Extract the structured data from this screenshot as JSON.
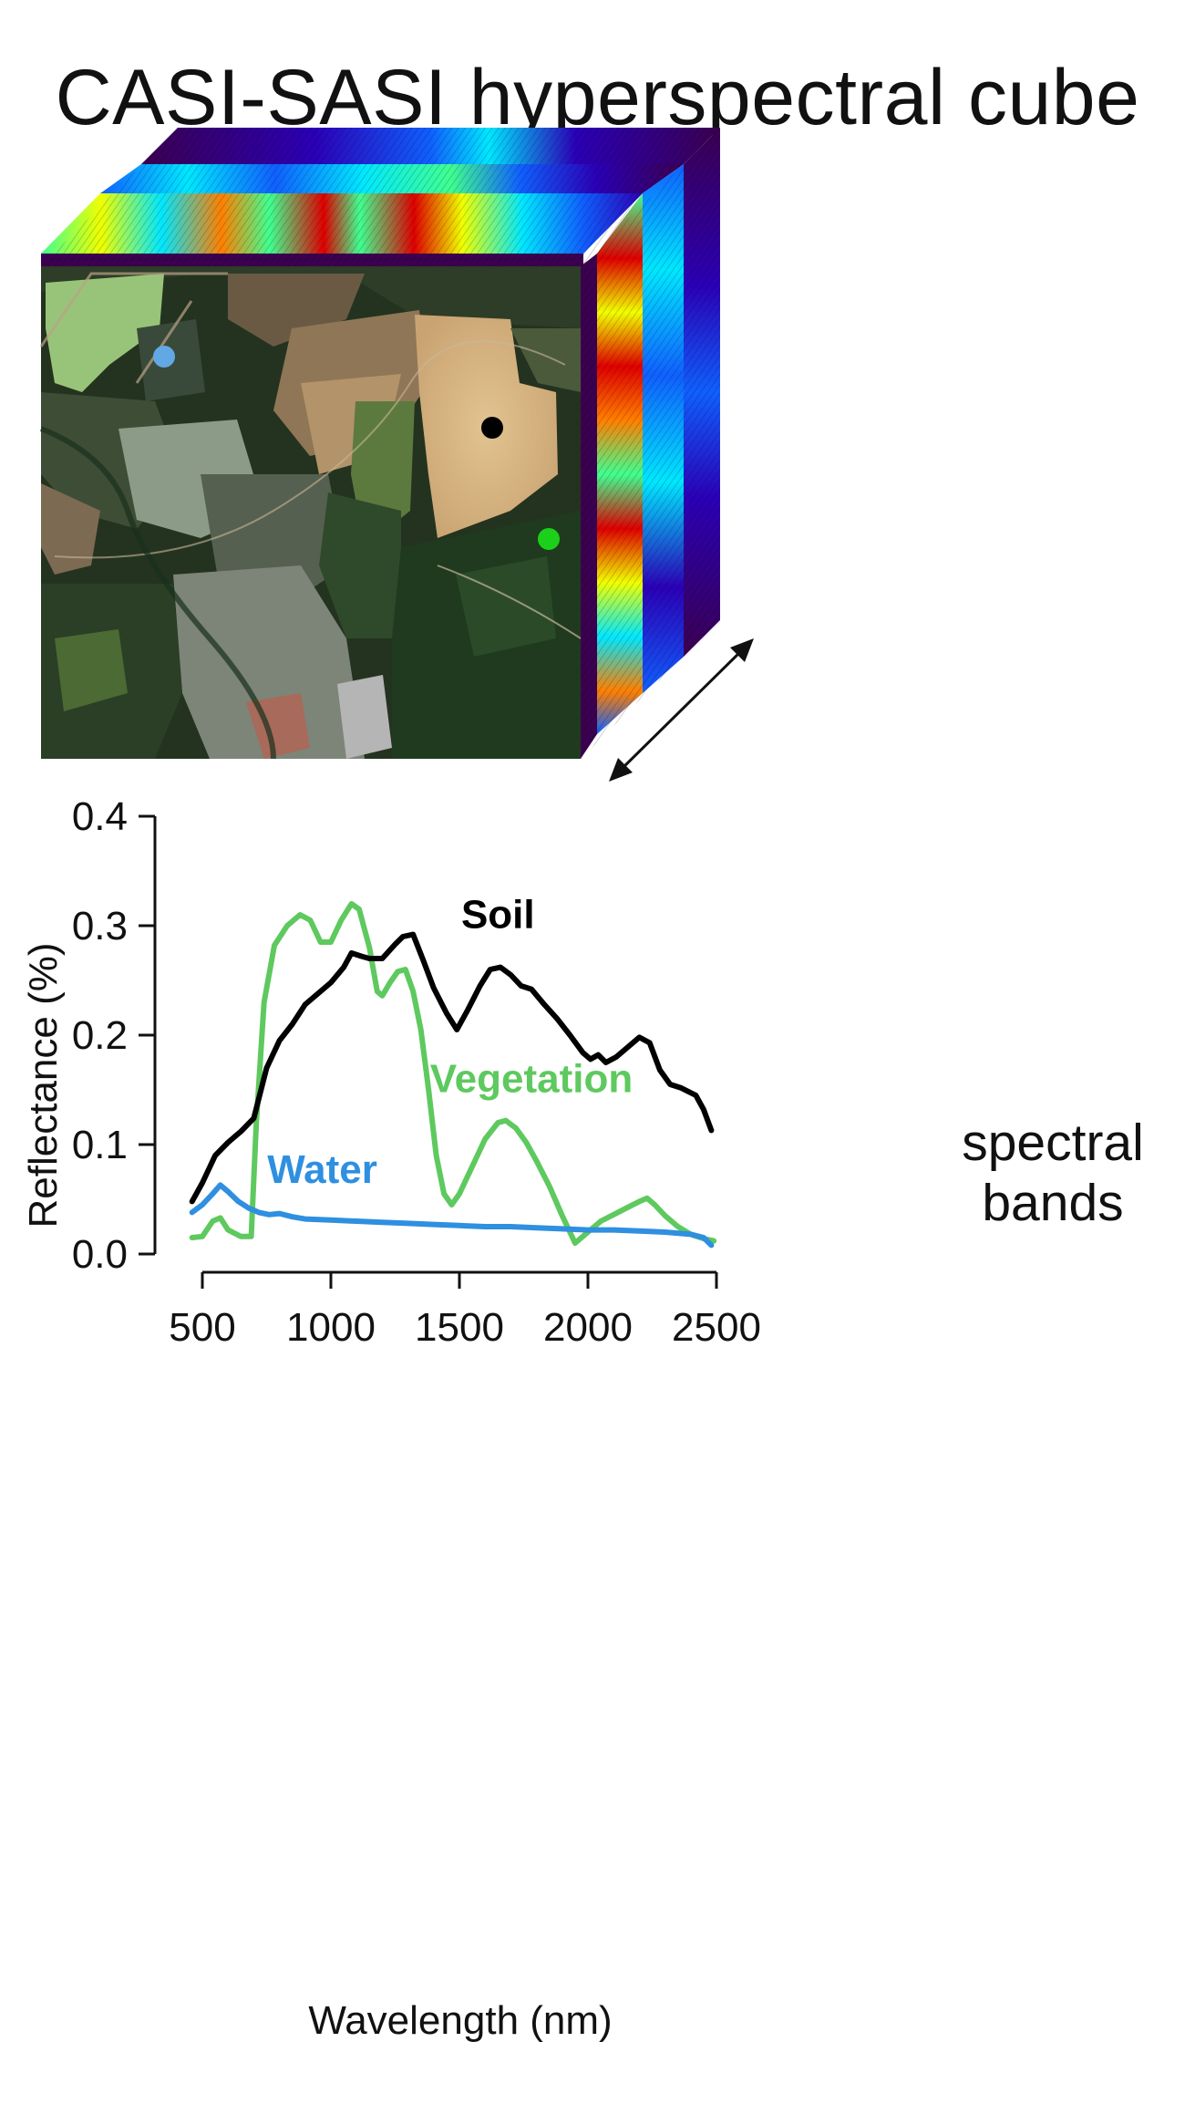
{
  "figure": {
    "title": "CASI-SASI hyperspectral cube",
    "bands_label_line1": "spectral",
    "bands_label_line2": "bands",
    "markers": [
      {
        "name": "water-marker",
        "color": "#62a8e4"
      },
      {
        "name": "soil-marker",
        "color": "#000000"
      },
      {
        "name": "vegetation-marker",
        "color": "#1bd01b"
      }
    ],
    "colormap": [
      "#3b0050",
      "#2b00b8",
      "#1060ff",
      "#00e8ff",
      "#40ff90",
      "#f0ff00",
      "#ff8000",
      "#e00000"
    ]
  },
  "chart_data": {
    "type": "line",
    "xlabel": "Wavelength (nm)",
    "ylabel": "Reflectance (%)",
    "xlim": [
      450,
      2500
    ],
    "ylim": [
      0,
      0.4
    ],
    "xticks": [
      500,
      1000,
      1500,
      2000,
      2500
    ],
    "yticks": [
      "0.0",
      "0.1",
      "0.2",
      "0.3",
      "0.4"
    ],
    "grid": false,
    "series": [
      {
        "name": "Soil",
        "color": "#000000",
        "x": [
          460,
          500,
          550,
          600,
          650,
          700,
          750,
          800,
          850,
          900,
          950,
          1000,
          1050,
          1080,
          1120,
          1150,
          1200,
          1250,
          1280,
          1320,
          1360,
          1400,
          1450,
          1490,
          1530,
          1580,
          1620,
          1660,
          1700,
          1740,
          1780,
          1830,
          1880,
          1930,
          1980,
          2010,
          2040,
          2070,
          2110,
          2160,
          2200,
          2240,
          2280,
          2320,
          2360,
          2420,
          2450,
          2480
        ],
        "y": [
          0.048,
          0.065,
          0.09,
          0.102,
          0.112,
          0.124,
          0.17,
          0.195,
          0.21,
          0.228,
          0.238,
          0.248,
          0.262,
          0.275,
          0.272,
          0.27,
          0.27,
          0.283,
          0.29,
          0.292,
          0.268,
          0.243,
          0.22,
          0.205,
          0.222,
          0.245,
          0.26,
          0.262,
          0.255,
          0.245,
          0.242,
          0.228,
          0.215,
          0.2,
          0.184,
          0.178,
          0.182,
          0.175,
          0.18,
          0.19,
          0.198,
          0.193,
          0.168,
          0.155,
          0.152,
          0.145,
          0.132,
          0.113
        ]
      },
      {
        "name": "Vegetation",
        "color": "#5ec95e",
        "x": [
          460,
          500,
          540,
          570,
          600,
          650,
          690,
          710,
          740,
          780,
          830,
          880,
          920,
          960,
          1000,
          1040,
          1080,
          1110,
          1150,
          1180,
          1200,
          1230,
          1260,
          1290,
          1320,
          1350,
          1380,
          1410,
          1440,
          1470,
          1500,
          1550,
          1600,
          1650,
          1680,
          1720,
          1760,
          1800,
          1850,
          1900,
          1950,
          2000,
          2050,
          2100,
          2150,
          2200,
          2230,
          2260,
          2300,
          2350,
          2400,
          2450,
          2490
        ],
        "y": [
          0.015,
          0.016,
          0.03,
          0.033,
          0.022,
          0.016,
          0.016,
          0.12,
          0.23,
          0.282,
          0.3,
          0.31,
          0.305,
          0.285,
          0.285,
          0.305,
          0.32,
          0.315,
          0.28,
          0.24,
          0.236,
          0.248,
          0.258,
          0.26,
          0.24,
          0.205,
          0.15,
          0.09,
          0.055,
          0.045,
          0.055,
          0.08,
          0.105,
          0.12,
          0.122,
          0.115,
          0.102,
          0.085,
          0.062,
          0.035,
          0.01,
          0.02,
          0.03,
          0.036,
          0.042,
          0.048,
          0.051,
          0.045,
          0.035,
          0.025,
          0.018,
          0.014,
          0.012
        ]
      },
      {
        "name": "Water",
        "color": "#2f8fe0",
        "x": [
          460,
          500,
          540,
          570,
          600,
          640,
          680,
          720,
          760,
          800,
          850,
          900,
          1000,
          1100,
          1200,
          1300,
          1400,
          1500,
          1600,
          1700,
          1800,
          1900,
          2000,
          2100,
          2200,
          2300,
          2400,
          2450,
          2480
        ],
        "y": [
          0.038,
          0.045,
          0.055,
          0.063,
          0.057,
          0.048,
          0.042,
          0.038,
          0.036,
          0.037,
          0.034,
          0.032,
          0.031,
          0.03,
          0.029,
          0.028,
          0.027,
          0.026,
          0.025,
          0.025,
          0.024,
          0.023,
          0.022,
          0.022,
          0.021,
          0.02,
          0.018,
          0.015,
          0.008
        ]
      }
    ],
    "annotations": [
      {
        "text": "Soil",
        "series": "Soil"
      },
      {
        "text": "Vegetation",
        "series": "Vegetation"
      },
      {
        "text": "Water",
        "series": "Water"
      }
    ]
  }
}
